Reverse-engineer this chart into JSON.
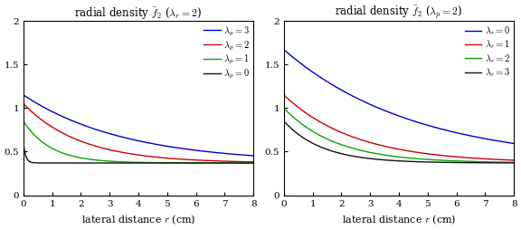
{
  "title_left": "radial density $\\bar{f}_2$ ($\\lambda_r = 2$)",
  "title_right": "radial density $\\bar{f}_2$ ($\\lambda_p = 2$)",
  "xlabel": "lateral distance $r$ (cm)",
  "xlim": [
    0,
    8
  ],
  "ylim": [
    0,
    2
  ],
  "yticks": [
    0,
    0.5,
    1.0,
    1.5,
    2.0
  ],
  "xticks": [
    0,
    1,
    2,
    3,
    4,
    5,
    6,
    7,
    8
  ],
  "left_curves": [
    {
      "lambda_p": 3,
      "color": "#0000cc",
      "label": "$\\lambda_p = 3$",
      "A0": 1.15,
      "k": 0.28
    },
    {
      "lambda_p": 2,
      "color": "#cc0000",
      "label": "$\\lambda_p = 2$",
      "A0": 1.05,
      "k": 0.5
    },
    {
      "lambda_p": 1,
      "color": "#00aa00",
      "label": "$\\lambda_p = 1$",
      "A0": 0.85,
      "k": 1.05
    },
    {
      "lambda_p": 0,
      "color": "#111111",
      "label": "$\\lambda_p = 0$",
      "A0": 0.6,
      "k": 12.0
    }
  ],
  "right_curves": [
    {
      "lambda_r": 0,
      "color": "#0000cc",
      "label": "$\\lambda_r = 0$",
      "A0": 1.67,
      "k": 0.22
    },
    {
      "lambda_r": 1,
      "color": "#cc0000",
      "label": "$\\lambda_r = 1$",
      "A0": 1.15,
      "k": 0.4
    },
    {
      "lambda_r": 2,
      "color": "#00aa00",
      "label": "$\\lambda_r = 2$",
      "A0": 1.0,
      "k": 0.55
    },
    {
      "lambda_r": 3,
      "color": "#111111",
      "label": "$\\lambda_r = 3$",
      "A0": 0.85,
      "k": 0.75
    }
  ],
  "asymptote": 0.37,
  "background_color": "#ffffff",
  "figsize": [
    5.76,
    2.54
  ],
  "dpi": 100
}
